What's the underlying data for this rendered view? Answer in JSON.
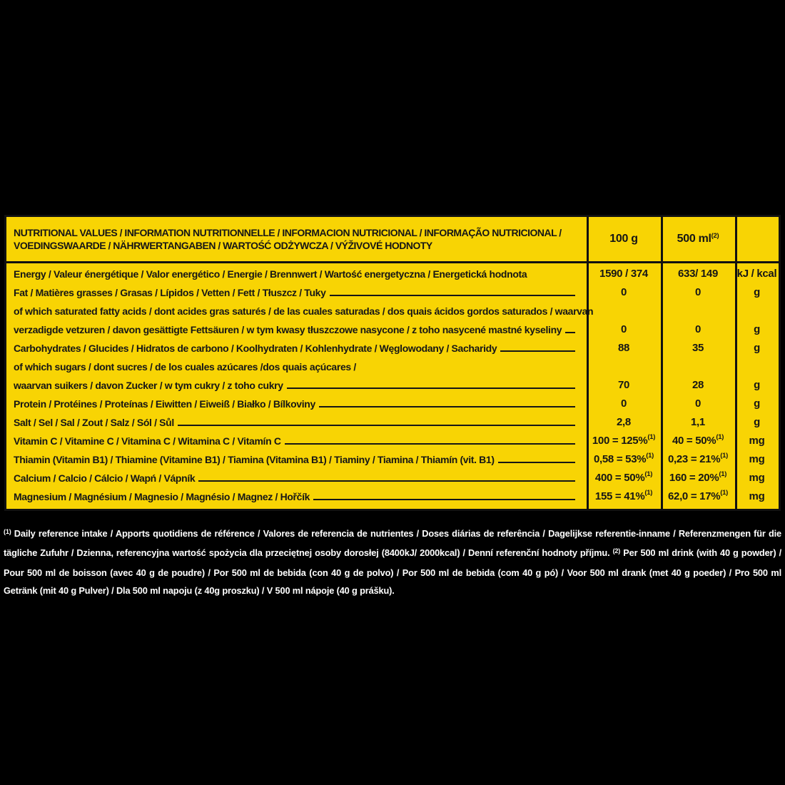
{
  "colors": {
    "background": "#000000",
    "panel_yellow": "#f8d404",
    "ink": "#161616",
    "footnote_text": "#ffffff"
  },
  "table": {
    "header": {
      "title_line1": "NUTRITIONAL VALUES / INFORMATION NUTRITIONNELLE / INFORMACION NUTRICIONAL / INFORMAÇÃO NUTRICIONAL /",
      "title_line2": "VOEDINGSWAARDE / NÄHRWERTANGABEN / WARTOŚĆ ODŻYWCZA / VÝŽIVOVÉ HODNOTY",
      "col_100g": "100 g",
      "col_500ml": "500 ml",
      "col_500ml_sup": "(2)",
      "col_unit": ""
    },
    "rows": [
      {
        "lines": [
          {
            "text": "Energy / Valeur énergétique / Valor energético / Energie / Brennwert / Wartość energetyczna / Energetická hodnota",
            "leader": false
          }
        ],
        "v100": "1590 / 374",
        "v100_sup": "",
        "v500": "633/ 149",
        "v500_sup": "",
        "unit": "kJ / kcal"
      },
      {
        "lines": [
          {
            "text": "Fat / Matières grasses / Grasas / Lípidos / Vetten / Fett / Tłuszcz / Tuky",
            "leader": true
          }
        ],
        "v100": "0",
        "v100_sup": "",
        "v500": "0",
        "v500_sup": "",
        "unit": "g"
      },
      {
        "lines": [
          {
            "text": "of which saturated fatty acids / dont acides gras saturés / de las cuales saturadas / dos quais ácidos gordos saturados / waarvan",
            "leader": false
          },
          {
            "text": "verzadigde vetzuren / davon gesättigte Fettsäuren / w tym kwasy tłuszczowe nasycone / z toho nasycené mastné kyseliny",
            "leader": true
          }
        ],
        "v100": "0",
        "v100_sup": "",
        "v500": "0",
        "v500_sup": "",
        "unit": "g"
      },
      {
        "lines": [
          {
            "text": "Carbohydrates / Glucides / Hidratos de carbono / Koolhydraten / Kohlenhydrate / Węglowodany / Sacharidy",
            "leader": true
          }
        ],
        "v100": "88",
        "v100_sup": "",
        "v500": "35",
        "v500_sup": "",
        "unit": "g"
      },
      {
        "lines": [
          {
            "text": "of which sugars / dont sucres / de los cuales azúcares /dos quais açúcares /",
            "leader": false
          },
          {
            "text": "waarvan suikers / davon Zucker  / w tym cukry / z toho cukry",
            "leader": true
          }
        ],
        "v100": "70",
        "v100_sup": "",
        "v500": "28",
        "v500_sup": "",
        "unit": "g"
      },
      {
        "lines": [
          {
            "text": "Protein / Protéines / Proteínas / Eiwitten / Eiweiß / Białko / Bílkoviny",
            "leader": true
          }
        ],
        "v100": "0",
        "v100_sup": "",
        "v500": "0",
        "v500_sup": "",
        "unit": "g"
      },
      {
        "lines": [
          {
            "text": "Salt / Sel / Sal / Zout / Salz / Sól / Sůl",
            "leader": true
          }
        ],
        "v100": "2,8",
        "v100_sup": "",
        "v500": "1,1",
        "v500_sup": "",
        "unit": "g"
      },
      {
        "lines": [
          {
            "text": "Vitamin C / Vitamine C / Vitamina C / Witamina C / Vitamín C",
            "leader": true
          }
        ],
        "v100": "100 = 125%",
        "v100_sup": "(1)",
        "v500": "40 = 50%",
        "v500_sup": "(1)",
        "unit": "mg"
      },
      {
        "lines": [
          {
            "text": "Thiamin (Vitamin B1) / Thiamine (Vitamine B1) / Tiamina (Vitamina B1) / Tiaminy / Tiamina / Thiamín (vit. B1)",
            "leader": true
          }
        ],
        "v100": "0,58 = 53%",
        "v100_sup": "(1)",
        "v500": "0,23 = 21%",
        "v500_sup": "(1)",
        "unit": "mg"
      },
      {
        "lines": [
          {
            "text": "Calcium / Calcio / Cálcio / Wapń / Vápník",
            "leader": true
          }
        ],
        "v100": "400 = 50%",
        "v100_sup": "(1)",
        "v500": "160 = 20%",
        "v500_sup": "(1)",
        "unit": "mg"
      },
      {
        "lines": [
          {
            "text": "Magnesium / Magnésium / Magnesio / Magnésio / Magnez / Hořčík",
            "leader": true
          }
        ],
        "v100": "155 = 41%",
        "v100_sup": "(1)",
        "v500": "62,0 = 17%",
        "v500_sup": "(1)",
        "unit": "mg"
      }
    ]
  },
  "footnote": {
    "sup1": "(1)",
    "text1": " Daily reference intake / Apports quotidiens de référence / Valores de referencia de nutrientes / Doses diárias de referência / Dagelijkse referentie-inname / Referenzmengen für die tägliche Zufuhr / Dzienna, referencyjna wartość spożycia dla przeciętnej osoby dorosłej (8400kJ/ 2000kcal) / Denní referenční hodnoty příjmu. ",
    "sup2": "(2)",
    "text2": " Per 500 ml drink (with 40 g powder) / Pour 500 ml de boisson (avec 40 g de poudre) / Por 500 ml de bebida (con 40 g de polvo) / Por 500 ml de bebida (com 40 g pó) / Voor 500 ml drank (met 40 g poeder) / Pro 500 ml Getränk (mit 40 g Pulver) / Dla 500 ml napoju (z 40g proszku) / V 500 ml nápoje (40 g prášku)."
  }
}
